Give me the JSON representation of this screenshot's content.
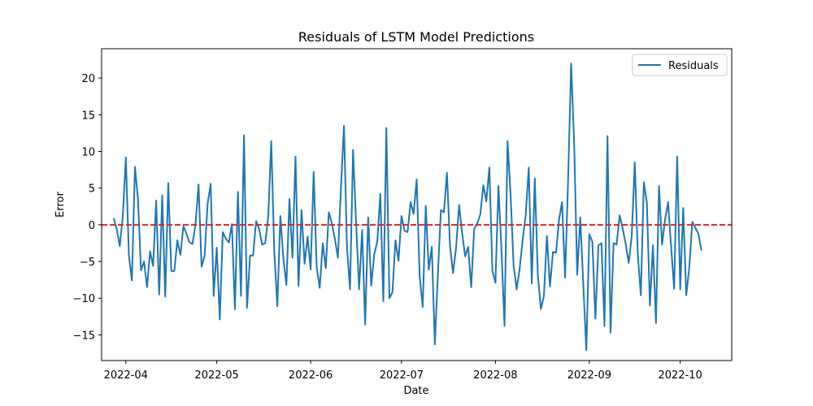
{
  "chart_data": {
    "type": "line",
    "title": "Residuals of LSTM Model Predictions",
    "xlabel": "Date",
    "ylabel": "Error",
    "x_start": "2022-03-28",
    "x_step_days": 1,
    "xlim": [
      "2022-03-24",
      "2022-10-18"
    ],
    "ylim": [
      -18.5,
      24.0
    ],
    "xticks": [
      {
        "date": "2022-04-01",
        "label": "2022-04"
      },
      {
        "date": "2022-05-01",
        "label": "2022-05"
      },
      {
        "date": "2022-06-01",
        "label": "2022-06"
      },
      {
        "date": "2022-07-01",
        "label": "2022-07"
      },
      {
        "date": "2022-08-01",
        "label": "2022-08"
      },
      {
        "date": "2022-09-01",
        "label": "2022-09"
      },
      {
        "date": "2022-10-01",
        "label": "2022-10"
      }
    ],
    "yticks": [
      -15,
      -10,
      -5,
      0,
      5,
      10,
      15,
      20
    ],
    "grid": false,
    "legend": {
      "position": "top-right"
    },
    "reference_line": {
      "y": 0,
      "color": "#d62728",
      "style": "dashed"
    },
    "series": [
      {
        "name": "Residuals",
        "color": "#1f77b4",
        "values": [
          0.9,
          -0.6,
          -2.9,
          1.2,
          9.2,
          -4.2,
          -7.6,
          7.9,
          3.5,
          -6.2,
          -5.0,
          -8.5,
          -3.6,
          -5.6,
          3.3,
          -9.5,
          4.0,
          -9.8,
          5.7,
          -6.3,
          -6.3,
          -2.1,
          -4.1,
          -0.2,
          -1.2,
          -2.4,
          -2.6,
          0.1,
          5.5,
          -5.7,
          -4.2,
          2.9,
          5.6,
          -9.7,
          -3.1,
          -12.9,
          -1.0,
          -1.9,
          -2.4,
          0.1,
          -11.5,
          4.5,
          -9.7,
          12.2,
          -11.3,
          -4.2,
          -4.2,
          0.5,
          -0.6,
          -2.7,
          -2.5,
          1.1,
          11.4,
          -3.7,
          -11.1,
          1.2,
          -4.6,
          -8.2,
          3.5,
          -4.5,
          9.3,
          -8.3,
          2.0,
          -5.3,
          -1.6,
          -6.1,
          7.2,
          -5.8,
          -8.6,
          -2.5,
          -5.9,
          1.7,
          0.2,
          -1.9,
          -4.5,
          5.0,
          13.5,
          -3.1,
          -8.8,
          10.2,
          0.3,
          -8.8,
          -0.7,
          -13.6,
          1.0,
          -8.3,
          -4.0,
          -2.3,
          4.2,
          -10.4,
          13.2,
          -10.0,
          -9.2,
          -2.1,
          -4.9,
          1.2,
          -0.8,
          -1.0,
          3.1,
          1.5,
          6.2,
          -7.1,
          -11.2,
          2.6,
          -6.1,
          -3.0,
          -16.3,
          -6.8,
          2.0,
          1.7,
          7.1,
          -2.8,
          -6.6,
          -3.2,
          2.7,
          -1.1,
          -4.3,
          -3.0,
          -8.5,
          -0.5,
          0.2,
          1.4,
          5.4,
          3.2,
          7.8,
          -6.3,
          -7.9,
          5.3,
          -3.5,
          -13.8,
          11.4,
          4.2,
          -5.5,
          -8.8,
          -6.0,
          -2.0,
          1.3,
          7.8,
          -8.0,
          6.3,
          -6.8,
          -11.5,
          -9.7,
          -1.5,
          -8.4,
          -3.7,
          -3.8,
          0.7,
          3.1,
          -7.2,
          6.2,
          22.0,
          11.0,
          -6.8,
          1.0,
          -8.0,
          -17.1,
          -1.3,
          -2.3,
          -12.8,
          -2.8,
          -2.5,
          -13.8,
          12.1,
          -14.7,
          -2.5,
          -2.7,
          1.3,
          -0.5,
          -2.6,
          -5.2,
          -1.5,
          8.5,
          -4.0,
          -9.6,
          5.8,
          3.0,
          -11.0,
          -2.8,
          -13.4,
          5.3,
          -2.7,
          0.7,
          3.1,
          -3.0,
          -8.7,
          9.3,
          -8.8,
          2.3,
          -9.6,
          -5.8,
          0.4,
          -0.4,
          -1.2,
          -3.5
        ]
      }
    ]
  }
}
